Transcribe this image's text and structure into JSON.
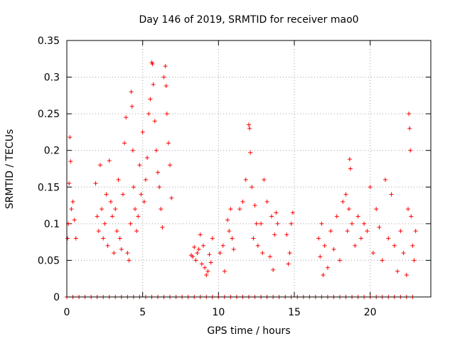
{
  "chart_data": {
    "type": "scatter",
    "title": "Day 146 of 2019, SRMTID for receiver mao0",
    "xlabel": "GPS time / hours",
    "ylabel": "SRMTID / TECUs",
    "xlim": [
      0,
      24
    ],
    "ylim": [
      0,
      0.35
    ],
    "x_ticks": [
      0,
      5,
      10,
      15,
      20
    ],
    "x_tick_labels": [
      "0",
      "5",
      "10",
      "15",
      "20"
    ],
    "y_ticks": [
      0,
      0.05,
      0.1,
      0.15,
      0.2,
      0.25,
      0.3,
      0.35
    ],
    "y_tick_labels": [
      "0",
      "0.05",
      "0.1",
      "0.15",
      "0.2",
      "0.25",
      "0.3",
      "0.35"
    ],
    "grid": true,
    "marker": "plus",
    "color": "#ff0000",
    "series": [
      {
        "name": "SRMTID",
        "points": [
          [
            0.05,
            0.08
          ],
          [
            0.1,
            0.1
          ],
          [
            0.15,
            0.155
          ],
          [
            0.2,
            0.218
          ],
          [
            0.25,
            0.185
          ],
          [
            0.3,
            0.12
          ],
          [
            0.4,
            0.13
          ],
          [
            0.5,
            0.105
          ],
          [
            0.6,
            0.08
          ],
          [
            1.9,
            0.155
          ],
          [
            2.0,
            0.11
          ],
          [
            2.1,
            0.09
          ],
          [
            2.2,
            0.18
          ],
          [
            2.3,
            0.12
          ],
          [
            2.4,
            0.08
          ],
          [
            2.5,
            0.1
          ],
          [
            2.6,
            0.14
          ],
          [
            2.7,
            0.07
          ],
          [
            2.8,
            0.186
          ],
          [
            2.9,
            0.13
          ],
          [
            3.0,
            0.11
          ],
          [
            3.1,
            0.06
          ],
          [
            3.2,
            0.12
          ],
          [
            3.3,
            0.09
          ],
          [
            3.4,
            0.16
          ],
          [
            3.5,
            0.08
          ],
          [
            3.6,
            0.065
          ],
          [
            3.7,
            0.14
          ],
          [
            3.8,
            0.21
          ],
          [
            3.9,
            0.245
          ],
          [
            4.0,
            0.06
          ],
          [
            4.1,
            0.05
          ],
          [
            4.2,
            0.1
          ],
          [
            4.25,
            0.28
          ],
          [
            4.3,
            0.26
          ],
          [
            4.35,
            0.2
          ],
          [
            4.4,
            0.15
          ],
          [
            4.5,
            0.12
          ],
          [
            4.6,
            0.09
          ],
          [
            4.7,
            0.11
          ],
          [
            4.8,
            0.18
          ],
          [
            4.9,
            0.14
          ],
          [
            5.0,
            0.225
          ],
          [
            5.1,
            0.13
          ],
          [
            5.2,
            0.16
          ],
          [
            5.3,
            0.19
          ],
          [
            5.4,
            0.25
          ],
          [
            5.5,
            0.27
          ],
          [
            5.6,
            0.32
          ],
          [
            5.65,
            0.318
          ],
          [
            5.7,
            0.29
          ],
          [
            5.8,
            0.24
          ],
          [
            5.9,
            0.2
          ],
          [
            6.0,
            0.17
          ],
          [
            6.1,
            0.15
          ],
          [
            6.2,
            0.12
          ],
          [
            6.3,
            0.095
          ],
          [
            6.4,
            0.3
          ],
          [
            6.5,
            0.315
          ],
          [
            6.55,
            0.288
          ],
          [
            6.6,
            0.25
          ],
          [
            6.7,
            0.21
          ],
          [
            6.8,
            0.18
          ],
          [
            6.9,
            0.135
          ],
          [
            8.2,
            0.057
          ],
          [
            8.3,
            0.055
          ],
          [
            8.4,
            0.068
          ],
          [
            8.5,
            0.05
          ],
          [
            8.6,
            0.06
          ],
          [
            8.7,
            0.065
          ],
          [
            8.8,
            0.085
          ],
          [
            8.9,
            0.045
          ],
          [
            9.0,
            0.07
          ],
          [
            9.1,
            0.04
          ],
          [
            9.2,
            0.03
          ],
          [
            9.3,
            0.035
          ],
          [
            9.4,
            0.058
          ],
          [
            9.5,
            0.047
          ],
          [
            9.6,
            0.08
          ],
          [
            10.1,
            0.06
          ],
          [
            10.3,
            0.07
          ],
          [
            10.4,
            0.035
          ],
          [
            10.6,
            0.105
          ],
          [
            10.7,
            0.09
          ],
          [
            10.8,
            0.12
          ],
          [
            10.9,
            0.08
          ],
          [
            11.0,
            0.065
          ],
          [
            11.4,
            0.12
          ],
          [
            11.6,
            0.13
          ],
          [
            11.8,
            0.16
          ],
          [
            12.0,
            0.235
          ],
          [
            12.05,
            0.23
          ],
          [
            12.1,
            0.197
          ],
          [
            12.2,
            0.15
          ],
          [
            12.3,
            0.08
          ],
          [
            12.4,
            0.125
          ],
          [
            12.5,
            0.1
          ],
          [
            12.6,
            0.07
          ],
          [
            12.8,
            0.1
          ],
          [
            12.9,
            0.06
          ],
          [
            13.0,
            0.16
          ],
          [
            13.2,
            0.13
          ],
          [
            13.4,
            0.055
          ],
          [
            13.5,
            0.11
          ],
          [
            13.6,
            0.037
          ],
          [
            13.7,
            0.085
          ],
          [
            13.8,
            0.115
          ],
          [
            13.9,
            0.1
          ],
          [
            14.5,
            0.085
          ],
          [
            14.6,
            0.045
          ],
          [
            14.7,
            0.06
          ],
          [
            14.8,
            0.1
          ],
          [
            14.9,
            0.115
          ],
          [
            16.6,
            0.08
          ],
          [
            16.7,
            0.055
          ],
          [
            16.8,
            0.1
          ],
          [
            16.9,
            0.03
          ],
          [
            17.0,
            0.07
          ],
          [
            17.2,
            0.04
          ],
          [
            17.4,
            0.09
          ],
          [
            17.6,
            0.065
          ],
          [
            17.8,
            0.11
          ],
          [
            18.0,
            0.05
          ],
          [
            18.2,
            0.13
          ],
          [
            18.4,
            0.14
          ],
          [
            18.5,
            0.09
          ],
          [
            18.6,
            0.12
          ],
          [
            18.65,
            0.188
          ],
          [
            18.7,
            0.175
          ],
          [
            18.8,
            0.1
          ],
          [
            19.0,
            0.07
          ],
          [
            19.2,
            0.11
          ],
          [
            19.4,
            0.08
          ],
          [
            19.6,
            0.1
          ],
          [
            19.8,
            0.09
          ],
          [
            20.0,
            0.15
          ],
          [
            20.2,
            0.06
          ],
          [
            20.4,
            0.12
          ],
          [
            20.6,
            0.095
          ],
          [
            20.8,
            0.05
          ],
          [
            21.0,
            0.16
          ],
          [
            21.2,
            0.08
          ],
          [
            21.4,
            0.14
          ],
          [
            21.6,
            0.07
          ],
          [
            21.8,
            0.035
          ],
          [
            22.0,
            0.09
          ],
          [
            22.2,
            0.06
          ],
          [
            22.4,
            0.03
          ],
          [
            22.5,
            0.12
          ],
          [
            22.55,
            0.25
          ],
          [
            22.6,
            0.23
          ],
          [
            22.65,
            0.2
          ],
          [
            22.7,
            0.11
          ],
          [
            22.8,
            0.07
          ],
          [
            22.9,
            0.05
          ],
          [
            23.0,
            0.09
          ],
          [
            0.0,
            0.0
          ],
          [
            0.4,
            0.0
          ],
          [
            0.8,
            0.0
          ],
          [
            1.2,
            0.0
          ],
          [
            1.6,
            0.0
          ],
          [
            2.0,
            0.0
          ],
          [
            2.4,
            0.0
          ],
          [
            2.8,
            0.0
          ],
          [
            3.2,
            0.0
          ],
          [
            3.6,
            0.0
          ],
          [
            4.0,
            0.0
          ],
          [
            4.4,
            0.0
          ],
          [
            4.8,
            0.0
          ],
          [
            5.2,
            0.0
          ],
          [
            5.6,
            0.0
          ],
          [
            6.0,
            0.0
          ],
          [
            6.4,
            0.0
          ],
          [
            6.8,
            0.0
          ],
          [
            7.2,
            0.0
          ],
          [
            7.6,
            0.0
          ],
          [
            8.0,
            0.0
          ],
          [
            8.4,
            0.0
          ],
          [
            8.8,
            0.0
          ],
          [
            9.2,
            0.0
          ],
          [
            9.6,
            0.0
          ],
          [
            10.0,
            0.0
          ],
          [
            10.4,
            0.0
          ],
          [
            10.8,
            0.0
          ],
          [
            11.2,
            0.0
          ],
          [
            11.6,
            0.0
          ],
          [
            12.0,
            0.0
          ],
          [
            12.4,
            0.0
          ],
          [
            12.8,
            0.0
          ],
          [
            13.2,
            0.0
          ],
          [
            13.6,
            0.0
          ],
          [
            14.0,
            0.0
          ],
          [
            14.4,
            0.0
          ],
          [
            14.8,
            0.0
          ],
          [
            15.2,
            0.0
          ],
          [
            15.6,
            0.0
          ],
          [
            16.0,
            0.0
          ],
          [
            16.4,
            0.0
          ],
          [
            16.8,
            0.0
          ],
          [
            17.2,
            0.0
          ],
          [
            17.6,
            0.0
          ],
          [
            18.0,
            0.0
          ],
          [
            18.4,
            0.0
          ],
          [
            18.8,
            0.0
          ],
          [
            19.2,
            0.0
          ],
          [
            19.6,
            0.0
          ],
          [
            20.0,
            0.0
          ],
          [
            20.4,
            0.0
          ],
          [
            20.8,
            0.0
          ],
          [
            21.2,
            0.0
          ],
          [
            21.6,
            0.0
          ],
          [
            22.0,
            0.0
          ],
          [
            22.4,
            0.0
          ],
          [
            22.8,
            0.0
          ]
        ]
      }
    ]
  }
}
